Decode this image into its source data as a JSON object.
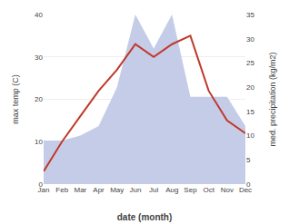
{
  "chart_data": {
    "type": "line",
    "xlabel": "date (month)",
    "ylabel": "max temp (C)",
    "y2label": "med. precipitation (kg/m2)",
    "categories": [
      "Jan",
      "Feb",
      "Mar",
      "Apr",
      "May",
      "Jun",
      "Jul",
      "Aug",
      "Sep",
      "Oct",
      "Nov",
      "Dec"
    ],
    "series": [
      {
        "type": "line",
        "color": "#c0392b",
        "values": [
          3.0,
          10.0,
          16.0,
          22.0,
          27.0,
          33.0,
          30.0,
          33.0,
          35.0,
          22.0,
          15.0,
          12.0
        ]
      },
      {
        "type": "area",
        "color": "#c5cce8",
        "axis": "y2",
        "values": [
          9.0,
          9.0,
          10.0,
          12.0,
          20.0,
          35.0,
          28.0,
          35.0,
          18.0,
          18.0,
          18.0,
          12.0
        ]
      }
    ],
    "ylim": [
      0,
      40
    ],
    "yticks": [
      0,
      10,
      20,
      30,
      40
    ],
    "y2lim": [
      0,
      35
    ],
    "y2ticks": [
      0,
      5,
      10,
      15,
      20,
      25,
      30,
      35
    ],
    "grid": "y"
  }
}
